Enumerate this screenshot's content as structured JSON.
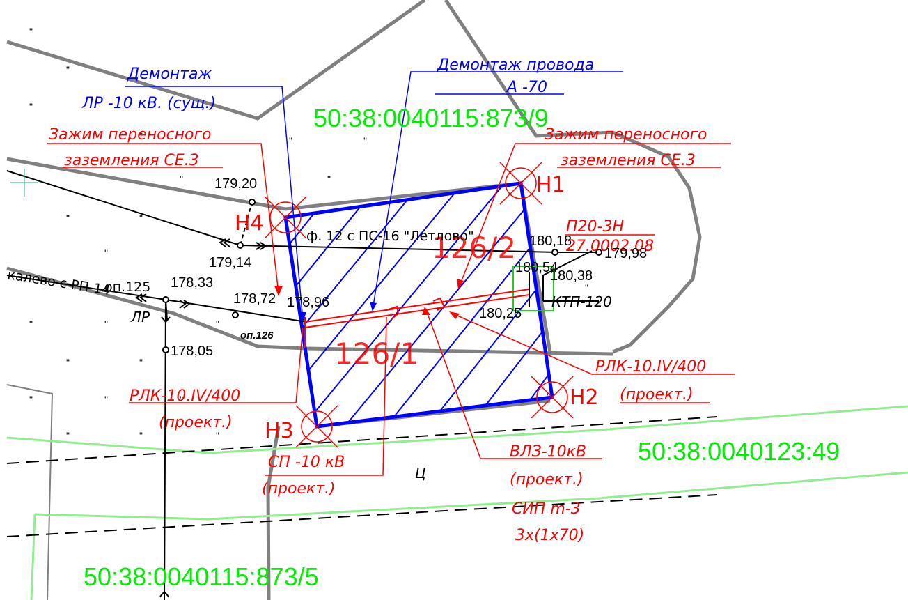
{
  "cadastral": {
    "top": "50:38:0040115:873/9",
    "right": "50:38:0040123:49",
    "bottom": "50:38:0040115:873/5"
  },
  "areas": {
    "upper": "126/2",
    "lower": "126/1"
  },
  "nodes": {
    "n1": "Н1",
    "n2": "Н2",
    "n3": "Н3",
    "n4": "Н4"
  },
  "annotations": {
    "dismantle_lr": [
      "Демонтаж",
      "ЛР -10 кВ. (сущ.)"
    ],
    "dismantle_wire": [
      "Демонтаж провода",
      "А -70"
    ],
    "clamp_left": [
      "Зажим переносного",
      "заземления СЕ.3"
    ],
    "clamp_right": [
      "Зажим переносного",
      "заземления СЕ.3"
    ],
    "rlk_left": [
      "РЛК-10.IV/400",
      "(проект.)"
    ],
    "rlk_right": [
      "РЛК-10.IV/400",
      "(проект.)"
    ],
    "sp": [
      "СП -10 кВ",
      "(проект.)"
    ],
    "vlz": [
      "ВЛЗ-10кВ",
      "(проект.)",
      "СИП m-3",
      "3х(1х70)"
    ],
    "p20": [
      "П20-3Н",
      "27.0002.08"
    ],
    "ktp": "КТП-120",
    "line_f12": "ф. 12 с ПС-16 \"Летлово\"",
    "line_kalevo": "калево с РП-14",
    "op125": "оп.125",
    "op126": "оп.126",
    "lr": "ЛР",
    "c_mark": "Ц"
  },
  "elevations": {
    "e17920": "179,20",
    "e17914": "179,14",
    "e17833": "178,33",
    "e17872": "178,72",
    "e17896": "178,96",
    "e17805": "178,05",
    "e18018": "180,18",
    "e17998": "179,98",
    "e18054": "180,54",
    "e18038": "180,38",
    "e18025": "180,25"
  },
  "colors": {
    "boundary": "#808080",
    "parcel_blue": "#0000ff",
    "annotation_red": "#ff0000",
    "cadastral_green": "#00ee00"
  }
}
